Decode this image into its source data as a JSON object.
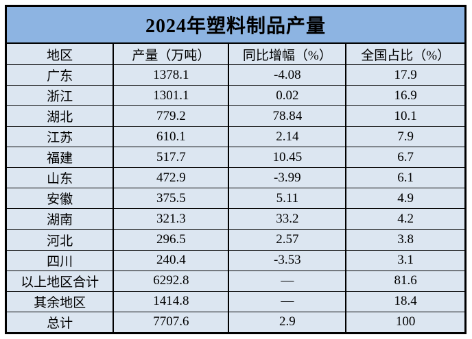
{
  "title": "2024年塑料制品产量",
  "colors": {
    "title_bg": "#8db4e2",
    "cell_bg": "#dce6f1",
    "border": "#000000",
    "text": "#000000",
    "page_bg": "#ffffff"
  },
  "chart_data": {
    "type": "table",
    "title": "2024年塑料制品产量",
    "columns": [
      "地区",
      "产量（万吨）",
      "同比增幅（%）",
      "全国占比（%）"
    ],
    "rows": [
      [
        "广东",
        "1378.1",
        "-4.08",
        "17.9"
      ],
      [
        "浙江",
        "1301.1",
        "0.02",
        "16.9"
      ],
      [
        "湖北",
        "779.2",
        "78.84",
        "10.1"
      ],
      [
        "江苏",
        "610.1",
        "2.14",
        "7.9"
      ],
      [
        "福建",
        "517.7",
        "10.45",
        "6.7"
      ],
      [
        "山东",
        "472.9",
        "-3.99",
        "6.1"
      ],
      [
        "安徽",
        "375.5",
        "5.11",
        "4.9"
      ],
      [
        "湖南",
        "321.3",
        "33.2",
        "4.2"
      ],
      [
        "河北",
        "296.5",
        "2.57",
        "3.8"
      ],
      [
        "四川",
        "240.4",
        "-3.53",
        "3.1"
      ],
      [
        "以上地区合计",
        "6292.8",
        "—",
        "81.6"
      ],
      [
        "其余地区",
        "1414.8",
        "—",
        "18.4"
      ],
      [
        "总计",
        "7707.6",
        "2.9",
        "100"
      ]
    ]
  }
}
